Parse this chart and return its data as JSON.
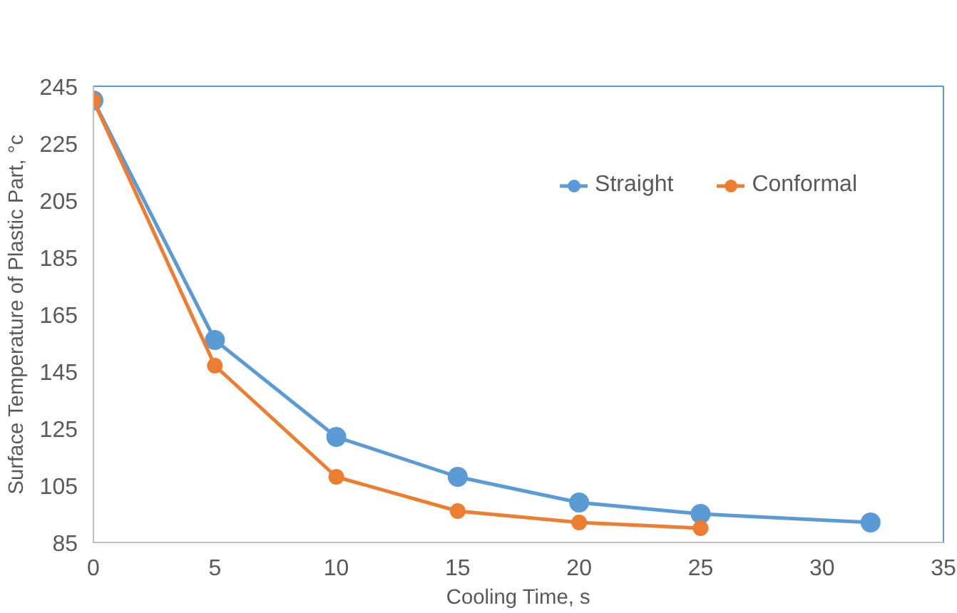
{
  "chart_data": {
    "type": "line",
    "xlabel": "Cooling Time, s",
    "ylabel": "Surface Temperature of Plastic Part, °c",
    "xlim": [
      0,
      35
    ],
    "xticks": [
      0,
      5,
      10,
      15,
      20,
      25,
      30,
      35
    ],
    "ylim": [
      85,
      245
    ],
    "yticks": [
      85,
      105,
      125,
      145,
      165,
      185,
      205,
      225,
      245
    ],
    "grid": false,
    "legend": "top right",
    "marker": "circle",
    "line_style": "solid",
    "series": [
      {
        "name": "Straight",
        "color": "#5b9bd5",
        "x": [
          0,
          5,
          10,
          15,
          20,
          25,
          32
        ],
        "values": [
          240,
          156,
          122,
          108,
          99,
          95,
          92
        ]
      },
      {
        "name": "Conformal",
        "color": "#ed7d31",
        "x": [
          0,
          5,
          10,
          15,
          20,
          25
        ],
        "values": [
          240,
          147,
          108,
          96,
          92,
          90
        ]
      }
    ]
  }
}
